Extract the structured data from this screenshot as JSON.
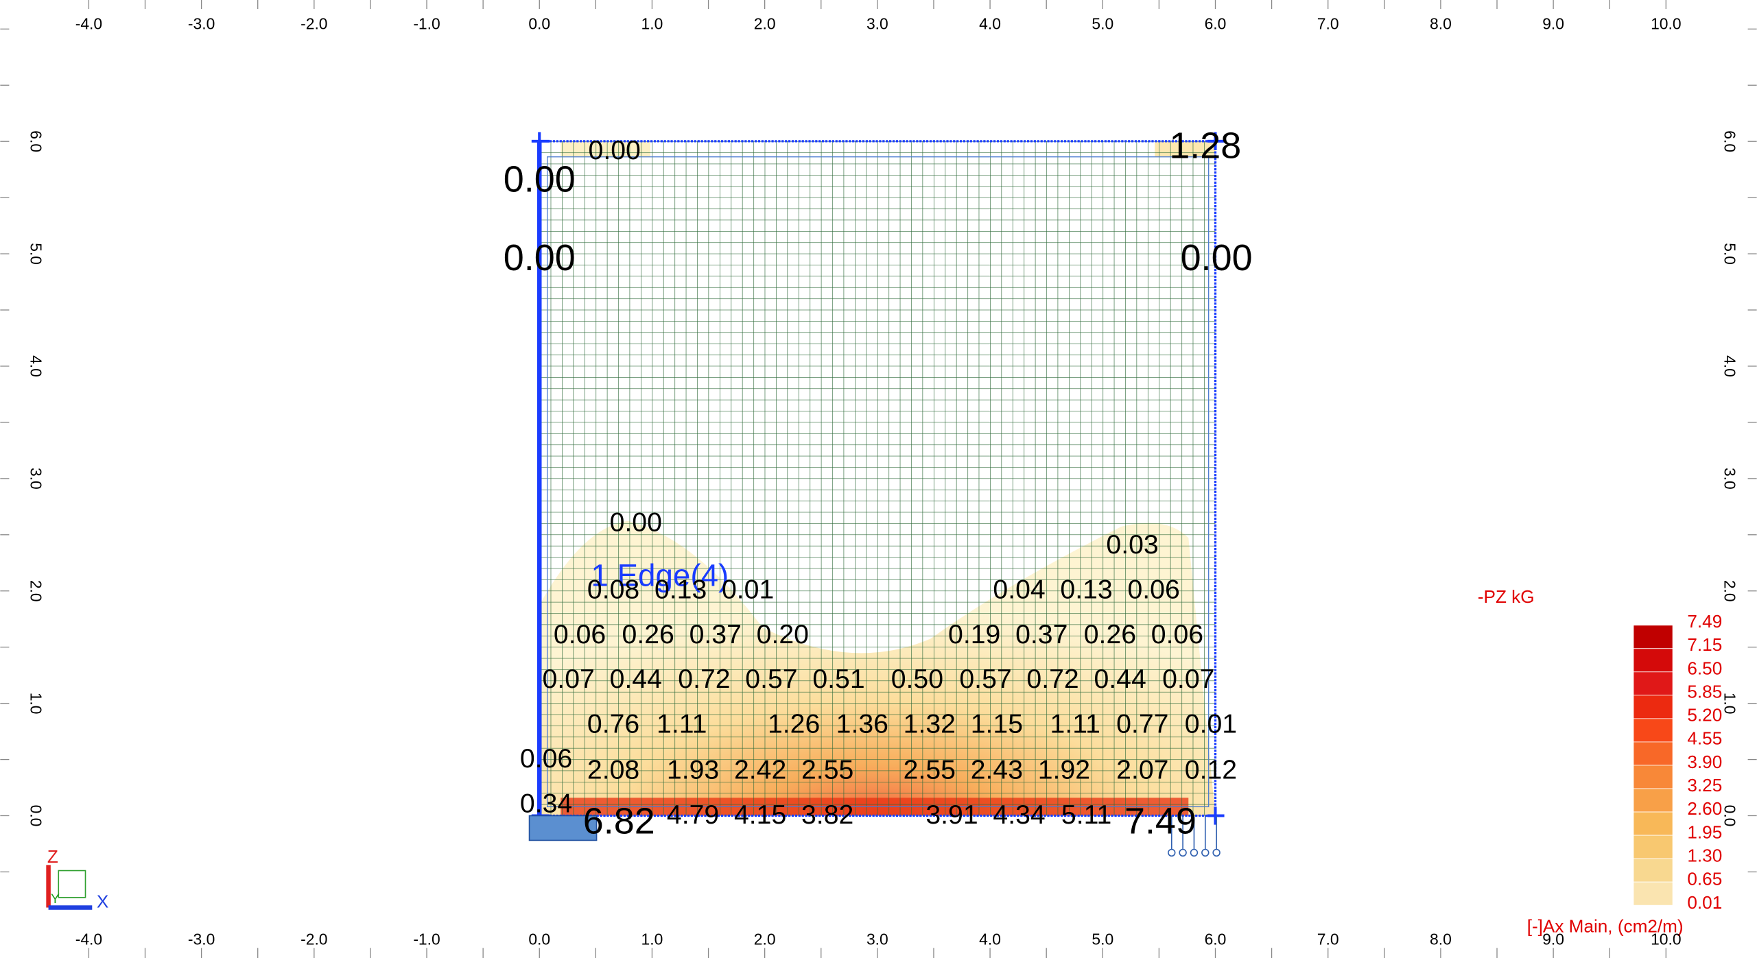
{
  "rulers": {
    "x_labels": [
      "-4.0",
      "-3.0",
      "-2.0",
      "-1.0",
      "0.0",
      "1.0",
      "2.0",
      "3.0",
      "4.0",
      "5.0",
      "6.0",
      "7.0",
      "8.0",
      "9.0",
      "10.0"
    ],
    "y_labels": [
      "0.0",
      "1.0",
      "2.0",
      "3.0",
      "4.0",
      "5.0",
      "6.0"
    ]
  },
  "plate": {
    "edge_label": "1 Edge(4)",
    "extreme_labels": [
      "0.00",
      "0.00",
      "1.28",
      "0.00",
      "6.82",
      "7.49"
    ],
    "contour_labels": [
      "0.00",
      "0.00",
      "0.03",
      "0.08",
      "0.13",
      "0.01",
      "0.04",
      "0.13",
      "0.06",
      "0.06",
      "0.26",
      "0.37",
      "0.20",
      "0.19",
      "0.37",
      "0.26",
      "0.06",
      "0.07",
      "0.44",
      "0.72",
      "0.57",
      "0.51",
      "0.50",
      "0.57",
      "0.72",
      "0.44",
      "0.07",
      "0.76",
      "1.11",
      "1.26",
      "1.36",
      "1.32",
      "1.15",
      "1.11",
      "0.77",
      "0.01",
      "0.06",
      "2.08",
      "1.93",
      "2.42",
      "2.55",
      "2.55",
      "2.43",
      "1.92",
      "2.07",
      "0.12",
      "0.34",
      "4.79",
      "4.15",
      "3.82",
      "3.91",
      "4.34",
      "5.11"
    ]
  },
  "legend": {
    "title": "-PZ   kG",
    "levels": [
      "7.49",
      "7.15",
      "6.50",
      "5.85",
      "5.20",
      "4.55",
      "3.90",
      "3.25",
      "2.60",
      "1.95",
      "1.30",
      "0.65",
      "0.01"
    ],
    "caption": "[-]Ax Main, (cm2/m)"
  },
  "triad": {
    "z": "Z",
    "y": "Y",
    "x": "X"
  }
}
